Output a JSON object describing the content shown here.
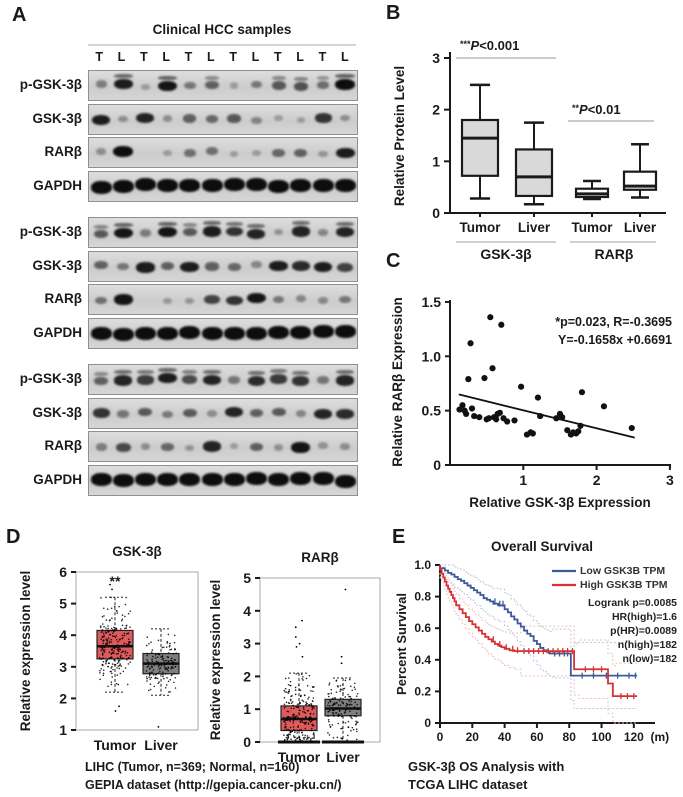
{
  "panel_labels": {
    "a": "A",
    "b": "B",
    "c": "C",
    "d": "D",
    "e": "E"
  },
  "panel_a": {
    "title": "Clinical HCC samples",
    "lanes": [
      "T",
      "L",
      "T",
      "L",
      "T",
      "L",
      "T",
      "L",
      "T",
      "L",
      "T",
      "L"
    ],
    "groups": [
      {
        "rows": [
          {
            "label": "p-GSK-3β",
            "bands": [
              0.25,
              0.9,
              0.05,
              0.95,
              0.3,
              0.45,
              0.05,
              0.3,
              0.5,
              0.55,
              0.35,
              1.0
            ]
          },
          {
            "label": "GSK-3β",
            "bands": [
              0.9,
              0.15,
              0.85,
              0.15,
              0.45,
              0.4,
              0.5,
              0.2,
              0.05,
              0.05,
              0.75,
              0.15
            ]
          },
          {
            "label": "RARβ",
            "bands": [
              0.15,
              1.0,
              0.02,
              0.05,
              0.35,
              0.35,
              0.05,
              0.05,
              0.4,
              0.45,
              0.1,
              0.9
            ]
          },
          {
            "label": "GAPDH",
            "bands": [
              1,
              1,
              1,
              1,
              1,
              1,
              1,
              1,
              1,
              1,
              1,
              1
            ]
          }
        ]
      },
      {
        "rows": [
          {
            "label": "p-GSK-3β",
            "bands": [
              0.5,
              0.95,
              0.25,
              0.95,
              0.5,
              0.9,
              0.75,
              0.85,
              0.12,
              0.85,
              0.2,
              0.85
            ]
          },
          {
            "label": "GSK-3β",
            "bands": [
              0.45,
              0.3,
              0.9,
              0.45,
              0.9,
              0.45,
              0.4,
              0.2,
              0.9,
              0.8,
              0.9,
              0.65
            ]
          },
          {
            "label": "RARβ",
            "bands": [
              0.35,
              0.95,
              0.03,
              0.08,
              0.1,
              0.65,
              0.75,
              0.95,
              0.3,
              0.2,
              0.18,
              0.3
            ]
          },
          {
            "label": "GAPDH",
            "bands": [
              1,
              1,
              1,
              1,
              1,
              1,
              1,
              1,
              1,
              1,
              1,
              1
            ]
          }
        ]
      },
      {
        "rows": [
          {
            "label": "p-GSK-3β",
            "bands": [
              0.45,
              0.85,
              0.7,
              0.9,
              0.6,
              0.85,
              0.3,
              0.8,
              0.7,
              0.75,
              0.3,
              0.85
            ]
          },
          {
            "label": "GSK-3β",
            "bands": [
              0.75,
              0.3,
              0.5,
              0.28,
              0.5,
              0.15,
              0.85,
              0.45,
              0.5,
              0.2,
              0.85,
              0.8
            ]
          },
          {
            "label": "RARβ",
            "bands": [
              0.25,
              0.6,
              0.15,
              0.4,
              0.1,
              0.85,
              0.05,
              0.45,
              0.12,
              0.95,
              0.12,
              0.15
            ]
          },
          {
            "label": "GAPDH",
            "bands": [
              1,
              1,
              1,
              1,
              1,
              1,
              1,
              1,
              1,
              1,
              1,
              1
            ]
          }
        ]
      }
    ]
  },
  "captions": {
    "d": [
      "LIHC (Tumor, n=369; Normal, n=160)",
      "GEPIA dataset (http://gepia.cancer-pku.cn/)"
    ],
    "e": [
      "GSK-3β OS Analysis with",
      "TCGA LIHC dataset"
    ]
  },
  "chart_data": [
    {
      "id": "b",
      "type": "box",
      "title": "",
      "ylabel": "Relative Protein Level",
      "ylim": [
        0,
        3
      ],
      "yticks": [
        0,
        1,
        2,
        3
      ],
      "group_labels": [
        "GSK-3β",
        "RARβ"
      ],
      "categories": [
        "Tumor",
        "Liver",
        "Tumor",
        "Liver"
      ],
      "boxes": [
        {
          "name": "GSK-3β Tumor",
          "lo": 0.28,
          "q1": 0.72,
          "med": 1.45,
          "q3": 1.8,
          "hi": 2.48,
          "fill": "#d9d9d9"
        },
        {
          "name": "GSK-3β Liver",
          "lo": 0.17,
          "q1": 0.33,
          "med": 0.7,
          "q3": 1.23,
          "hi": 1.75,
          "fill": "#d9d9d9"
        },
        {
          "name": "RARβ Tumor",
          "lo": 0.27,
          "q1": 0.31,
          "med": 0.37,
          "q3": 0.47,
          "hi": 0.62,
          "fill": "#ffffff"
        },
        {
          "name": "RARβ Liver",
          "lo": 0.3,
          "q1": 0.45,
          "med": 0.52,
          "q3": 0.8,
          "hi": 1.33,
          "fill": "#ffffff"
        }
      ],
      "sig": [
        {
          "stars": "***",
          "text": "P<0.001"
        },
        {
          "stars": "**",
          "text": "P<0.01"
        }
      ]
    },
    {
      "id": "c",
      "type": "scatter",
      "xlabel": "Relative GSK-3β Expression",
      "ylabel": "Relative RARβ Expression",
      "xlim": [
        0,
        3
      ],
      "xticks": [
        1,
        2,
        3
      ],
      "ylim": [
        0,
        1.5
      ],
      "yticks": [
        0,
        0.5,
        1.0,
        1.5
      ],
      "annotation": [
        "*p=0.023, R=-0.3695",
        "Y=-0.1658x +0.6691"
      ],
      "regression": {
        "slope": -0.1658,
        "intercept": 0.6691,
        "x_start": 0.12,
        "x_end": 2.52
      },
      "points": [
        [
          0.13,
          0.51
        ],
        [
          0.17,
          0.55
        ],
        [
          0.2,
          0.5
        ],
        [
          0.22,
          0.47
        ],
        [
          0.25,
          0.79
        ],
        [
          0.28,
          1.12
        ],
        [
          0.3,
          0.52
        ],
        [
          0.33,
          0.45
        ],
        [
          0.4,
          0.44
        ],
        [
          0.47,
          0.8
        ],
        [
          0.5,
          0.42
        ],
        [
          0.53,
          0.43
        ],
        [
          0.55,
          1.36
        ],
        [
          0.58,
          0.89
        ],
        [
          0.6,
          0.44
        ],
        [
          0.63,
          0.42
        ],
        [
          0.65,
          0.47
        ],
        [
          0.68,
          0.48
        ],
        [
          0.7,
          1.29
        ],
        [
          0.73,
          0.43
        ],
        [
          0.78,
          0.4
        ],
        [
          0.88,
          0.41
        ],
        [
          0.97,
          0.72
        ],
        [
          1.05,
          0.28
        ],
        [
          1.1,
          0.3
        ],
        [
          1.13,
          0.29
        ],
        [
          1.2,
          0.62
        ],
        [
          1.23,
          0.45
        ],
        [
          1.45,
          0.43
        ],
        [
          1.5,
          0.47
        ],
        [
          1.53,
          0.44
        ],
        [
          1.6,
          0.32
        ],
        [
          1.65,
          0.28
        ],
        [
          1.68,
          0.3
        ],
        [
          1.72,
          0.29
        ],
        [
          1.75,
          0.31
        ],
        [
          1.78,
          0.36
        ],
        [
          1.8,
          0.67
        ],
        [
          2.1,
          0.54
        ],
        [
          2.48,
          0.34
        ]
      ]
    },
    {
      "id": "d1",
      "type": "box",
      "title": "GSK-3β",
      "ylabel": "Relative expression level",
      "ylim": [
        1,
        6
      ],
      "yticks": [
        1,
        2,
        3,
        4,
        5,
        6
      ],
      "sig": "**",
      "zero_base": false,
      "categories": [
        "Tumor",
        "Liver"
      ],
      "boxes": [
        {
          "name": "Tumor",
          "fill": "#e0595b",
          "lo": 2.2,
          "q1": 3.25,
          "med": 3.65,
          "q3": 4.15,
          "hi": 5.2,
          "n": 369,
          "jitter_sd": 0.55,
          "outliers": [
            1.6,
            1.75,
            5.45,
            5.6
          ]
        },
        {
          "name": "Liver",
          "fill": "#7f7f7f",
          "lo": 2.1,
          "q1": 2.78,
          "med": 3.1,
          "q3": 3.42,
          "hi": 4.2,
          "n": 160,
          "jitter_sd": 0.4,
          "outliers": [
            1.1
          ]
        }
      ]
    },
    {
      "id": "d2",
      "type": "box",
      "title": "RARβ",
      "ylabel": "Relative expression level",
      "ylim": [
        0,
        5
      ],
      "yticks": [
        0,
        1,
        2,
        3,
        4,
        5
      ],
      "sig": "",
      "zero_base": true,
      "categories": [
        "Tumor",
        "Liver"
      ],
      "boxes": [
        {
          "name": "Tumor",
          "fill": "#e0595b",
          "lo": 0,
          "q1": 0.35,
          "med": 0.7,
          "q3": 1.1,
          "hi": 2.1,
          "n": 369,
          "jitter_sd": 0.6,
          "outliers": [
            3.7,
            3.5,
            3.2,
            3.0,
            2.9,
            2.6
          ]
        },
        {
          "name": "Liver",
          "fill": "#7f7f7f",
          "lo": 0,
          "q1": 0.8,
          "med": 1.02,
          "q3": 1.3,
          "hi": 1.95,
          "n": 160,
          "jitter_sd": 0.45,
          "outliers": [
            4.65,
            2.6,
            2.4
          ]
        }
      ]
    },
    {
      "id": "e",
      "type": "line",
      "title": "Overall Survival",
      "ylabel": "Percent Survival",
      "xunit": "(m)",
      "xlim": [
        0,
        130
      ],
      "xticks": [
        0,
        20,
        40,
        60,
        80,
        100,
        120
      ],
      "ylim": [
        0,
        1
      ],
      "yticks": [
        0,
        0.2,
        0.4,
        0.6,
        0.8,
        1.0
      ],
      "stats": [
        "Logrank p=0.0085",
        "HR(high)=1.6",
        "p(HR)=0.0089",
        "n(high)=182",
        "n(low)=182"
      ],
      "series": [
        {
          "name": "Low GSK3B TPM",
          "color": "#3d5a98",
          "ci_color": "#b9c5de",
          "steps": [
            [
              0,
              1.0
            ],
            [
              3,
              0.98
            ],
            [
              5,
              0.965
            ],
            [
              7,
              0.95
            ],
            [
              9,
              0.94
            ],
            [
              11,
              0.925
            ],
            [
              13,
              0.91
            ],
            [
              15,
              0.9
            ],
            [
              17,
              0.885
            ],
            [
              19,
              0.87
            ],
            [
              21,
              0.855
            ],
            [
              23,
              0.84
            ],
            [
              25,
              0.825
            ],
            [
              27,
              0.81
            ],
            [
              29,
              0.79
            ],
            [
              31,
              0.78
            ],
            [
              33,
              0.77
            ],
            [
              36,
              0.755
            ],
            [
              40,
              0.745
            ],
            [
              42,
              0.72
            ],
            [
              44,
              0.7
            ],
            [
              46,
              0.675
            ],
            [
              48,
              0.655
            ],
            [
              50,
              0.63
            ],
            [
              52,
              0.61
            ],
            [
              54,
              0.585
            ],
            [
              56,
              0.565
            ],
            [
              58,
              0.55
            ],
            [
              60,
              0.52
            ],
            [
              62,
              0.5
            ],
            [
              64,
              0.475
            ],
            [
              66,
              0.46
            ],
            [
              68,
              0.45
            ],
            [
              70,
              0.44
            ],
            [
              81,
              0.44
            ],
            [
              83,
              0.3
            ],
            [
              122,
              0.3
            ]
          ],
          "censors": [
            34,
            37,
            39,
            71,
            74,
            77,
            79,
            88,
            95,
            103,
            110,
            117,
            121
          ]
        },
        {
          "name": "High GSK3B TPM",
          "color": "#d53232",
          "ci_color": "#f3bcbc",
          "steps": [
            [
              0,
              1.0
            ],
            [
              1,
              0.97
            ],
            [
              2,
              0.945
            ],
            [
              3,
              0.92
            ],
            [
              4,
              0.895
            ],
            [
              5,
              0.87
            ],
            [
              6,
              0.85
            ],
            [
              7,
              0.83
            ],
            [
              8,
              0.81
            ],
            [
              9,
              0.79
            ],
            [
              10,
              0.77
            ],
            [
              12,
              0.745
            ],
            [
              14,
              0.72
            ],
            [
              16,
              0.695
            ],
            [
              18,
              0.67
            ],
            [
              20,
              0.645
            ],
            [
              22,
              0.625
            ],
            [
              24,
              0.605
            ],
            [
              26,
              0.585
            ],
            [
              28,
              0.565
            ],
            [
              30,
              0.545
            ],
            [
              32,
              0.53
            ],
            [
              34,
              0.515
            ],
            [
              36,
              0.5
            ],
            [
              38,
              0.49
            ],
            [
              40,
              0.48
            ],
            [
              43,
              0.47
            ],
            [
              46,
              0.46
            ],
            [
              50,
              0.455
            ],
            [
              83,
              0.455
            ],
            [
              86,
              0.34
            ],
            [
              104,
              0.34
            ],
            [
              107,
              0.25
            ],
            [
              109,
              0.17
            ],
            [
              122,
              0.17
            ]
          ],
          "censors": [
            33,
            37,
            41,
            45,
            48,
            52,
            55,
            58,
            61,
            64,
            67,
            70,
            73,
            76,
            79,
            82,
            90,
            95,
            100,
            112,
            116,
            120
          ]
        }
      ]
    }
  ]
}
